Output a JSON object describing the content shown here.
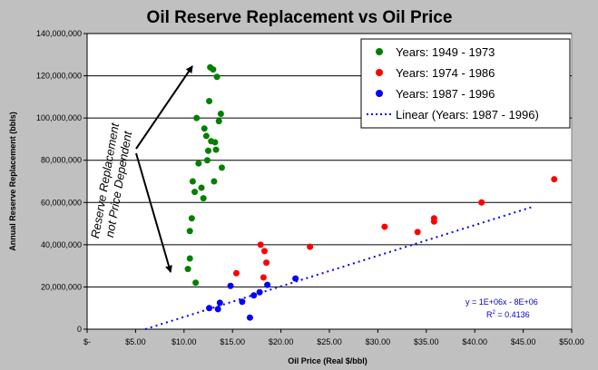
{
  "chart_data": {
    "type": "scatter",
    "title": "Oil Reserve Replacement vs Oil Price",
    "xlabel": "Oil Price (Real $/bbl)",
    "ylabel": "Annual Reserve Replacement (bbls)",
    "xlim": [
      0,
      50
    ],
    "ylim": [
      0,
      140000000
    ],
    "x_ticks": [
      0,
      5,
      10,
      15,
      20,
      25,
      30,
      35,
      40,
      45,
      50
    ],
    "x_tick_labels": [
      "$-",
      "$5.00",
      "$10.00",
      "$15.00",
      "$20.00",
      "$25.00",
      "$30.00",
      "$35.00",
      "$40.00",
      "$45.00",
      "$50.00"
    ],
    "y_ticks": [
      0,
      20000000,
      40000000,
      60000000,
      80000000,
      100000000,
      120000000,
      140000000
    ],
    "y_tick_labels": [
      "0",
      "20,000,000",
      "40,000,000",
      "60,000,000",
      "80,000,000",
      "100,000,000",
      "120,000,000",
      "140,000,000"
    ],
    "grid": "horizontal",
    "legend_position": "top-right",
    "series": [
      {
        "name": "Years: 1949 - 1973",
        "color": "#008000",
        "points": [
          [
            10.4,
            28500000
          ],
          [
            10.6,
            33500000
          ],
          [
            10.6,
            46500000
          ],
          [
            10.8,
            52500000
          ],
          [
            10.9,
            70000000
          ],
          [
            11.1,
            65000000
          ],
          [
            11.2,
            22000000
          ],
          [
            11.3,
            100000000
          ],
          [
            11.5,
            78500000
          ],
          [
            11.8,
            67000000
          ],
          [
            12.0,
            62000000
          ],
          [
            12.1,
            95000000
          ],
          [
            12.3,
            91500000
          ],
          [
            12.4,
            80000000
          ],
          [
            12.5,
            84500000
          ],
          [
            12.6,
            108000000
          ],
          [
            12.7,
            124000000
          ],
          [
            12.8,
            89000000
          ],
          [
            13.0,
            123000000
          ],
          [
            13.1,
            70000000
          ],
          [
            13.2,
            88500000
          ],
          [
            13.3,
            85000000
          ],
          [
            13.4,
            119500000
          ],
          [
            13.6,
            98500000
          ],
          [
            13.8,
            102000000
          ],
          [
            13.9,
            76500000
          ]
        ]
      },
      {
        "name": "Years: 1974 - 1986",
        "color": "#ff0000",
        "points": [
          [
            15.4,
            26500000
          ],
          [
            17.9,
            40000000
          ],
          [
            18.2,
            24500000
          ],
          [
            18.3,
            37000000
          ],
          [
            18.5,
            31500000
          ],
          [
            23.0,
            39000000
          ],
          [
            30.7,
            48500000
          ],
          [
            34.1,
            46000000
          ],
          [
            35.8,
            52500000
          ],
          [
            35.8,
            51000000
          ],
          [
            40.7,
            60000000
          ],
          [
            48.2,
            71000000
          ]
        ]
      },
      {
        "name": "Years: 1987 - 1996",
        "color": "#0000ff",
        "points": [
          [
            12.6,
            10000000
          ],
          [
            13.5,
            9500000
          ],
          [
            13.7,
            12500000
          ],
          [
            14.8,
            20500000
          ],
          [
            16.0,
            13000000
          ],
          [
            16.8,
            5500000
          ],
          [
            17.2,
            16000000
          ],
          [
            17.8,
            17500000
          ],
          [
            18.6,
            21000000
          ],
          [
            21.5,
            24000000
          ]
        ]
      }
    ],
    "trendline": {
      "name": "Linear (Years: 1987 - 1996)",
      "color": "#0000ff",
      "style": "dotted",
      "x_range": [
        6.0,
        46.0
      ],
      "y_range": [
        0,
        58000000
      ],
      "equation": "y = 1E+06x - 8E+06",
      "r2_label": "R",
      "r2_sup": "2",
      "r2_value": " = 0.4136"
    },
    "annotation": {
      "line1": "Reserve Replacement",
      "line2": "not Price Dependent"
    }
  }
}
